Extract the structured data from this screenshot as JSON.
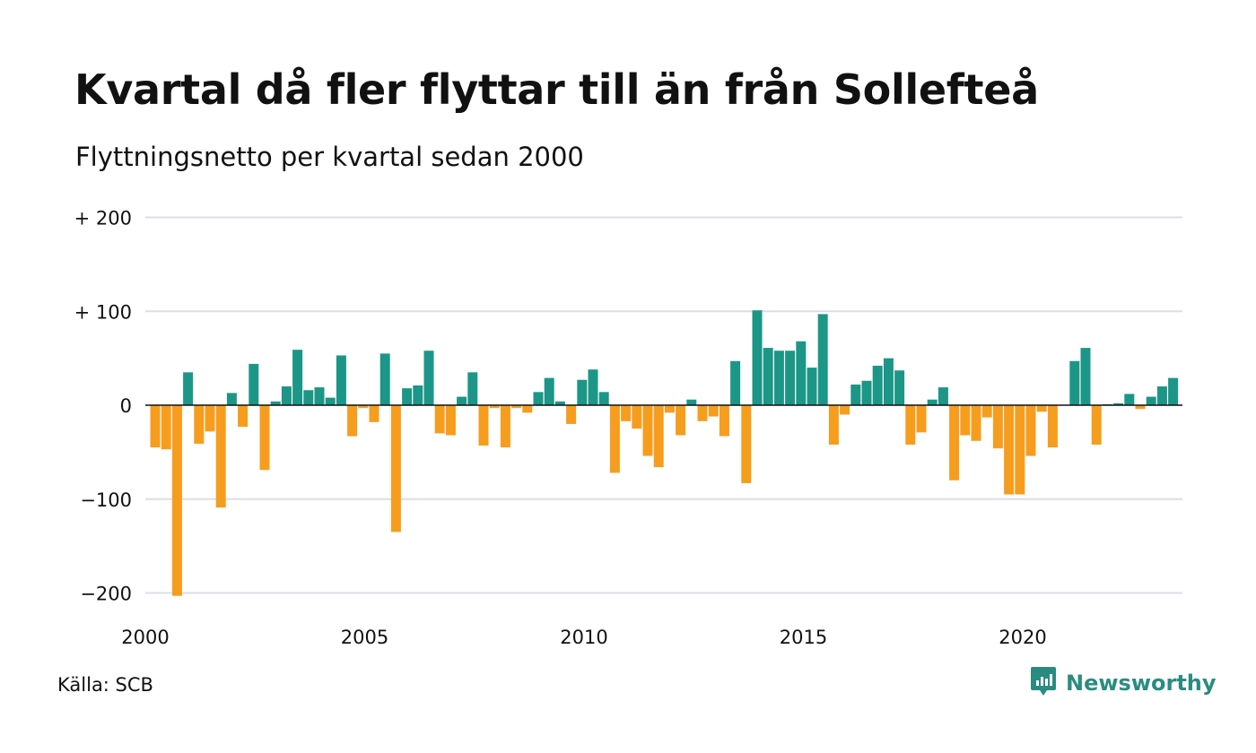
{
  "title": "Kvartal då fler flyttar till än från Sollefteå",
  "subtitle": "Flyttningsnetto per kvartal sedan 2000",
  "source": "Källa: SCB",
  "brand": {
    "name": "Newsworthy",
    "icon": "newsworthy-logo-icon"
  },
  "colors": {
    "positive": "#1c9687",
    "negative": "#f69d1e",
    "grid": "#dddde6",
    "brand": "#2a8c80"
  },
  "chart_data": {
    "type": "bar",
    "title": "Kvartal då fler flyttar till än från Sollefteå",
    "subtitle": "Flyttningsnetto per kvartal sedan 2000",
    "xlabel": "",
    "ylabel": "",
    "ylim": [
      -200,
      200
    ],
    "yticks": [
      200,
      100,
      0,
      -100,
      -200
    ],
    "ytick_labels": [
      "+ 200",
      "+ 100",
      "0",
      "−100",
      "−200"
    ],
    "xticks": [
      2000,
      2005,
      2010,
      2015,
      2020
    ],
    "xtick_labels": [
      "2000",
      "2005",
      "2010",
      "2015",
      "2020"
    ],
    "x_start": "2000 Q1",
    "grid": true,
    "legend": "none",
    "series": [
      {
        "values": [
          -45,
          -47,
          -203,
          35,
          -41,
          -28,
          -109,
          13,
          -23,
          44,
          -69,
          4,
          20,
          59,
          16,
          19,
          8,
          53,
          -33,
          -3,
          -18,
          55,
          -135,
          18,
          21,
          58,
          -30,
          -32,
          9,
          35,
          -43,
          -3,
          -45,
          -3,
          -8,
          14,
          29,
          4,
          -20,
          27,
          38,
          14,
          -72,
          -17,
          -25,
          -54,
          -66,
          -8,
          -32,
          6,
          -17,
          -12,
          -33,
          47,
          -83,
          101,
          61,
          58,
          58,
          68,
          40,
          97,
          -42,
          -10,
          22,
          26,
          42,
          50,
          37,
          -42,
          -29,
          6,
          19,
          -80,
          -32,
          -38,
          -13,
          -46,
          -95,
          -95,
          -54,
          -7,
          -45,
          0,
          47,
          61,
          -42,
          1,
          2,
          12,
          -4,
          9,
          20,
          29
        ]
      }
    ]
  }
}
